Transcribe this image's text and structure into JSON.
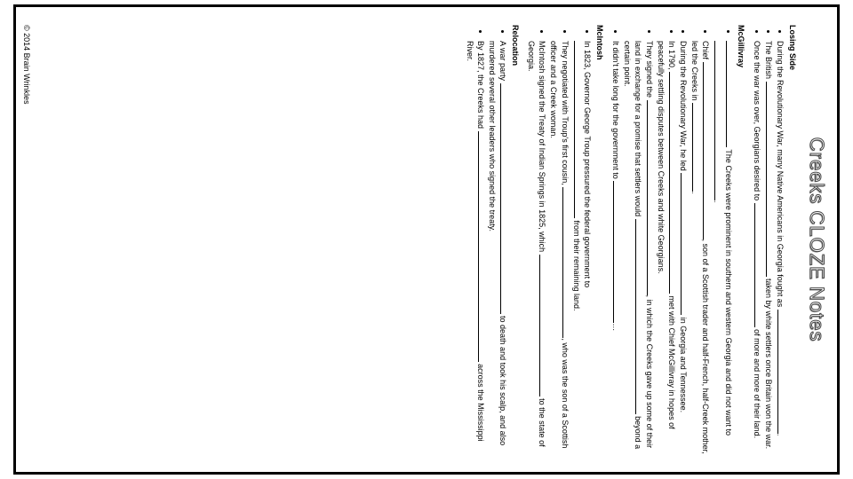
{
  "title": "Creeks CLOZE Notes",
  "copyright": "© 2014 Brain Wrinkles",
  "sections": [
    {
      "heading": "Losing Side",
      "items": [
        [
          {
            "t": "During the Revolutionary War, many Native Americans in Georgia fought as "
          },
          {
            "b": 140
          },
          {
            "t": "."
          }
        ],
        [
          {
            "t": "The British "
          },
          {
            "b": 220
          },
          {
            "t": " taken by white settlers once Britain won the war."
          }
        ],
        [
          {
            "t": "Once the war was over, Georgians desired to "
          },
          {
            "b": 140
          },
          {
            "t": " of more and more of their land."
          }
        ]
      ]
    },
    {
      "heading": "McGillivray",
      "items": [
        [
          {
            "b": 120
          },
          {
            "t": " The Creeks were prominent in southern and western Georgia and did not want to "
          },
          {
            "b": 180
          },
          {
            "t": "."
          }
        ],
        [
          {
            "t": "Chief "
          },
          {
            "b": 200
          },
          {
            "t": ", son of a Scottish trader and half-French, half-Creek mother, led the Creeks in "
          },
          {
            "b": 100
          },
          {
            "t": "."
          }
        ],
        [
          {
            "t": "During the Revolutionary War, he led "
          },
          {
            "b": 160
          },
          {
            "t": " in Georgia and Tennessee."
          }
        ],
        [
          {
            "t": "In 1790, "
          },
          {
            "b": 250
          },
          {
            "t": " met with Chief McGillivray in hopes of peacefully settling disputes between Creeks and white Georgians."
          }
        ],
        [
          {
            "t": "They signed the "
          },
          {
            "b": 220
          },
          {
            "t": ", in which the Creeks gave up some of their land in exchange for a promise that settlers would "
          },
          {
            "b": 220
          },
          {
            "t": " beyond a certain point."
          }
        ],
        [
          {
            "t": "It didn't take long for the government to "
          },
          {
            "b": 160
          },
          {
            "t": "…"
          }
        ]
      ]
    },
    {
      "heading": "McIntosh",
      "items": [
        [
          {
            "t": "In 1823, Governor George Troup pressured the federal government to "
          },
          {
            "b": 200
          },
          {
            "t": " from their remaining land."
          }
        ],
        [
          {
            "t": "They negotiated with Troup's first cousin, "
          },
          {
            "b": 170
          },
          {
            "t": ", who was the son of a Scottish officer and a Creek woman."
          }
        ],
        [
          {
            "t": "McIntosh signed the Treaty of Indian Springs in 1825, which "
          },
          {
            "b": 160
          },
          {
            "t": " to the state of Georgia."
          }
        ]
      ]
    },
    {
      "heading": "Relocation",
      "items": [
        [
          {
            "t": "A war party "
          },
          {
            "b": 260
          },
          {
            "t": " to death and took his scalp, and also murdered several other leaders who signed the treaty."
          }
        ],
        [
          {
            "t": "By 1827, the Creeks had "
          },
          {
            "b": 260
          },
          {
            "t": " across the Mississippi River."
          }
        ]
      ]
    }
  ]
}
